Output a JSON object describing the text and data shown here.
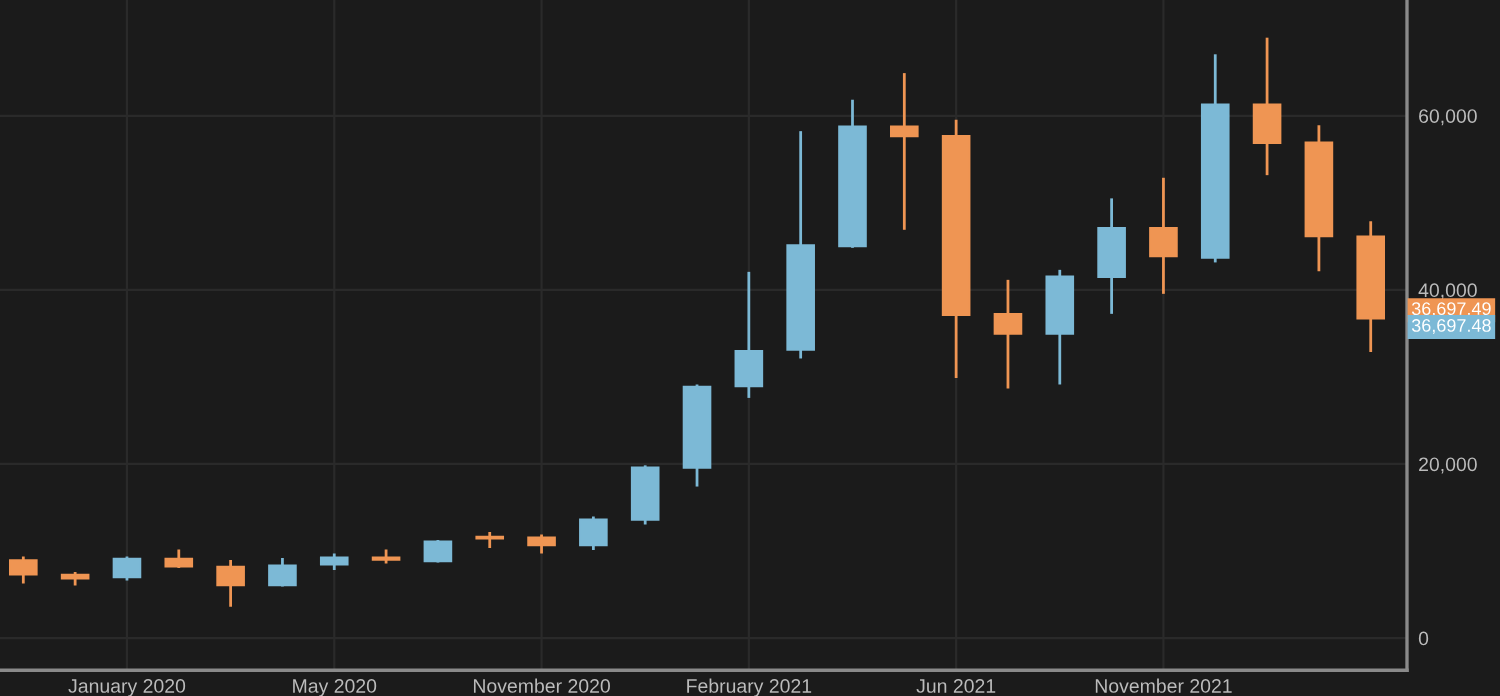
{
  "chart_data": {
    "type": "candlestick",
    "categories": [
      null,
      null,
      "January 2020",
      null,
      null,
      null,
      "May 2020",
      null,
      null,
      null,
      "November 2020",
      null,
      null,
      null,
      "February 2021",
      null,
      null,
      null,
      "Jun 2021",
      null,
      null,
      null,
      "November 2021",
      null,
      null,
      null,
      null
    ],
    "ohlc": [
      [
        8966,
        9357,
        6276,
        7288
      ],
      [
        7288,
        7587,
        6046,
        6828
      ],
      [
        6966,
        9357,
        6598,
        9127
      ],
      [
        9127,
        10185,
        8047,
        8207
      ],
      [
        8207,
        8966,
        3609,
        6046
      ],
      [
        6046,
        9196,
        5908,
        8346
      ],
      [
        8437,
        9725,
        7817,
        9265
      ],
      [
        9265,
        10185,
        8575,
        8966
      ],
      [
        8805,
        11265,
        8667,
        11104
      ],
      [
        11656,
        12185,
        10345,
        11426
      ],
      [
        11564,
        11886,
        9725,
        10644
      ],
      [
        10644,
        13955,
        10116,
        13633
      ],
      [
        13564,
        19841,
        13035,
        19611
      ],
      [
        19542,
        29128,
        17404,
        28898
      ],
      [
        28898,
        42070,
        27588,
        32989
      ],
      [
        33105,
        58233,
        32117,
        45130
      ],
      [
        44992,
        61843,
        44830,
        58784
      ],
      [
        58784,
        64901,
        46900,
        57635
      ],
      [
        57705,
        59544,
        29887,
        37084
      ],
      [
        37244,
        41151,
        28668,
        34945
      ],
      [
        34945,
        42300,
        29128,
        41543
      ],
      [
        41451,
        50510,
        37244,
        47130
      ],
      [
        47130,
        52877,
        39543,
        43842
      ],
      [
        43681,
        67062,
        43152,
        61314
      ],
      [
        61314,
        68971,
        53177,
        56854
      ],
      [
        56947,
        58923,
        42139,
        46141
      ],
      [
        46141,
        47889,
        32875,
        36697.49
      ]
    ],
    "colors": [
      "#ef9553",
      "#ef9553",
      "#7cb9d6",
      "#ef9553",
      "#ef9553",
      "#7cb9d6",
      "#7cb9d6",
      "#ef9553",
      "#7cb9d6",
      "#ef9553",
      "#ef9553",
      "#7cb9d6",
      "#7cb9d6",
      "#7cb9d6",
      "#7cb9d6",
      "#7cb9d6",
      "#7cb9d6",
      "#ef9553",
      "#ef9553",
      "#ef9553",
      "#7cb9d6",
      "#7cb9d6",
      "#ef9553",
      "#7cb9d6",
      "#ef9553",
      "#ef9553",
      "#ef9553"
    ],
    "ylim": [
      -3700,
      73300
    ],
    "yticks": [
      0,
      {
        "value": 20000,
        "label": "20,000"
      },
      {
        "value": 40000,
        "label": "40,000"
      },
      {
        "value": 60000,
        "label": "60,000"
      }
    ],
    "grid": true,
    "annotations": [
      "36,697.49",
      "36,697.48"
    ]
  }
}
